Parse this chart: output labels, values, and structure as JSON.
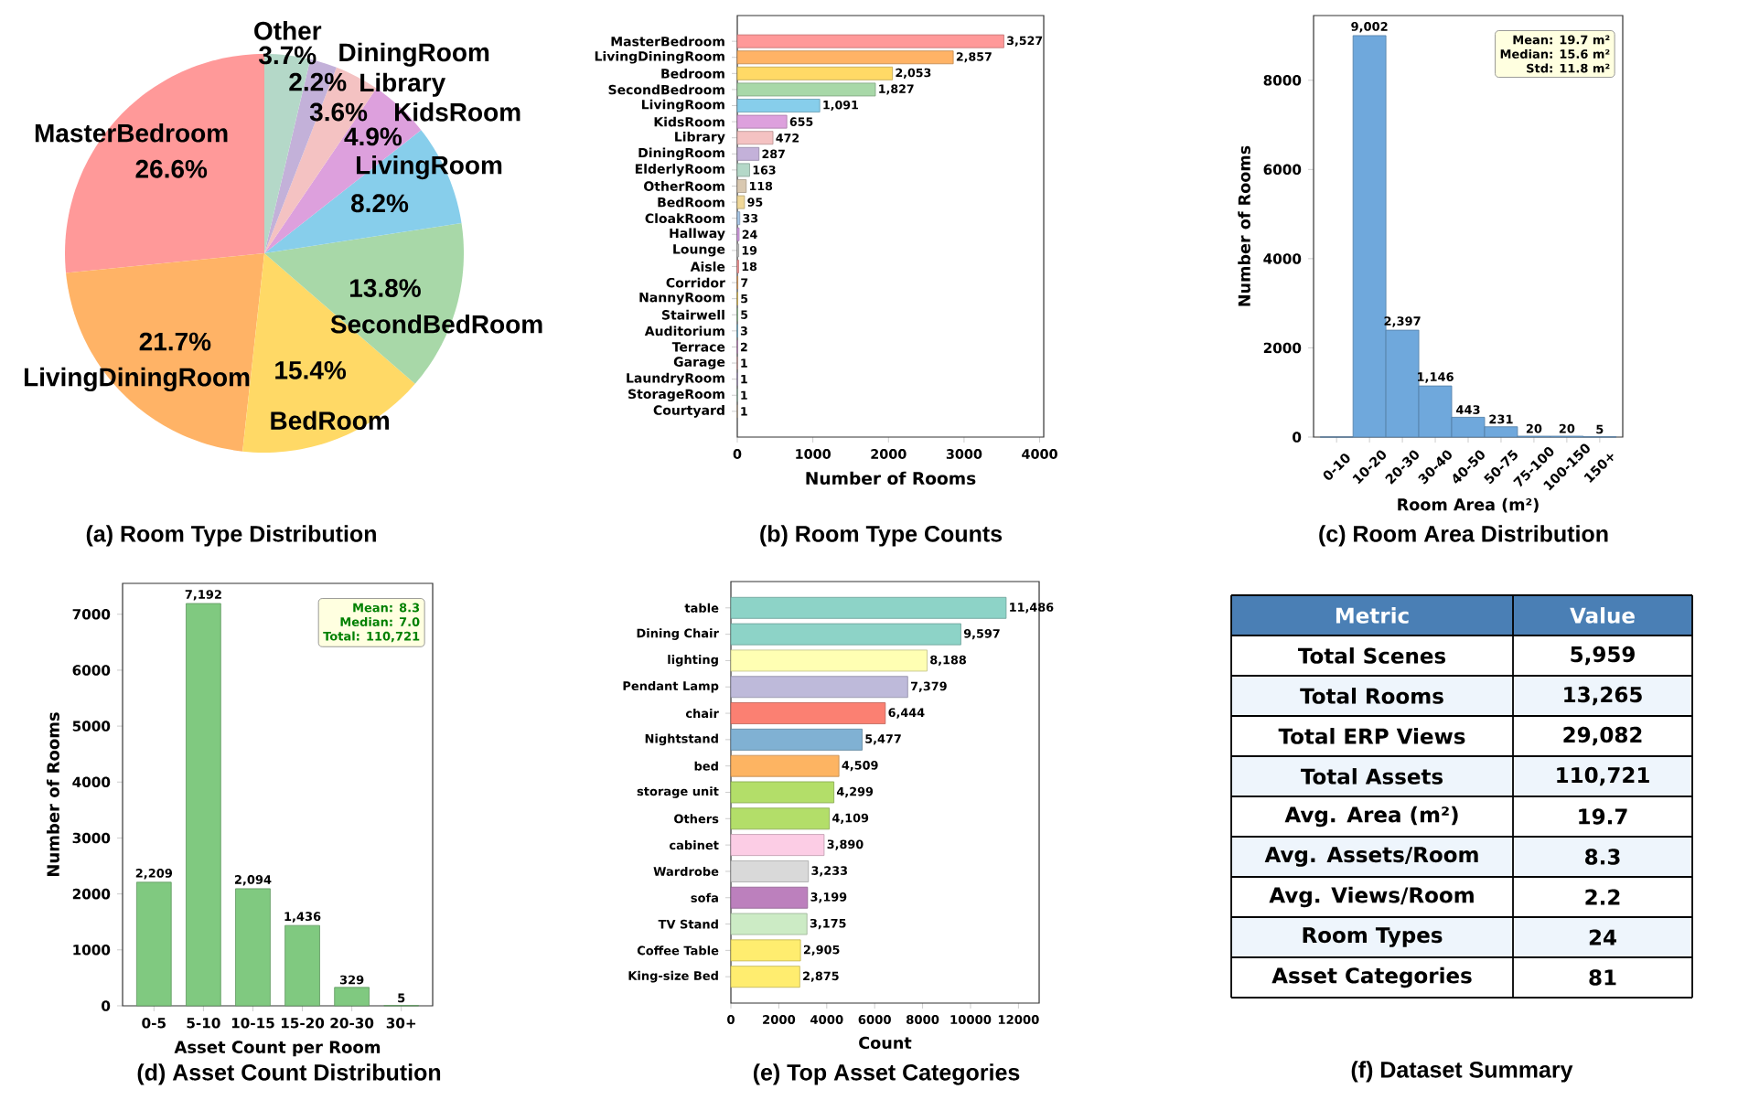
{
  "chart_data": [
    {
      "type": "pie",
      "title": "(a) Room Type Distribution",
      "categories": [
        "MasterBedroom",
        "LivingDiningRoom",
        "BedRoom",
        "SecondBedRoom",
        "LivingRoom",
        "KidsRoom",
        "Library",
        "DiningRoom",
        "Other"
      ],
      "values": [
        26.6,
        21.7,
        15.4,
        13.8,
        8.2,
        4.9,
        3.6,
        2.2,
        3.7
      ],
      "value_labels": [
        "26.6%",
        "21.7%",
        "15.4%",
        "13.8%",
        "8.2%",
        "4.9%",
        "3.6%",
        "2.2%",
        "3.7%"
      ],
      "colors": [
        "#ff9999",
        "#ffb366",
        "#ffd966",
        "#a8d8a8",
        "#87ceeb",
        "#dda0dd",
        "#f4c2c2",
        "#c3b1d9",
        "#b4d8c8"
      ]
    },
    {
      "type": "bar",
      "orientation": "horizontal",
      "title": "(b) Room Type Counts",
      "xlabel": "Number of Rooms",
      "categories": [
        "MasterBedroom",
        "LivingDiningRoom",
        "Bedroom",
        "SecondBedroom",
        "LivingRoom",
        "KidsRoom",
        "Library",
        "DiningRoom",
        "ElderlyRoom",
        "OtherRoom",
        "BedRoom",
        "CloakRoom",
        "Hallway",
        "Lounge",
        "Aisle",
        "Corridor",
        "NannyRoom",
        "Stairwell",
        "Auditorium",
        "Terrace",
        "Garage",
        "LaundryRoom",
        "StorageRoom",
        "Courtyard"
      ],
      "values": [
        3527,
        2857,
        2053,
        1827,
        1091,
        655,
        472,
        287,
        163,
        118,
        95,
        33,
        24,
        19,
        18,
        7,
        5,
        5,
        3,
        2,
        1,
        1,
        1,
        1
      ],
      "value_labels": [
        "3,527",
        "2,857",
        "2,053",
        "1,827",
        "1,091",
        "655",
        "472",
        "287",
        "163",
        "118",
        "95",
        "33",
        "24",
        "19",
        "18",
        "7",
        "5",
        "5",
        "3",
        "2",
        "1",
        "1",
        "1",
        "1"
      ],
      "colors": [
        "#ff9999",
        "#ffb366",
        "#ffd966",
        "#a8d8a8",
        "#87ceeb",
        "#dda0dd",
        "#f4c2c2",
        "#c3b1d9",
        "#b4d8c8",
        "#d9c8b0",
        "#f0d898",
        "#a8c8e8",
        "#d8a0e8",
        "#c8c8c8",
        "#ff9999",
        "#ffb366",
        "#ffd966",
        "#a8d8a8",
        "#87ceeb",
        "#dda0dd",
        "#f4c2c2",
        "#c3b1d9",
        "#b4d8c8",
        "#d9c8b0"
      ],
      "xlim": [
        0,
        4054
      ],
      "xticks": [
        0,
        1000,
        2000,
        3000,
        4000
      ]
    },
    {
      "type": "bar",
      "title": "(c) Room Area Distribution",
      "xlabel": "Room Area (m²)",
      "ylabel": "Number of Rooms",
      "categories": [
        "0-10",
        "10-20",
        "20-30",
        "30-40",
        "40-50",
        "50-75",
        "75-100",
        "100-150",
        "150+"
      ],
      "values": [
        0,
        9002,
        2397,
        1146,
        443,
        231,
        20,
        20,
        5
      ],
      "value_labels": [
        null,
        "9,002",
        "2,397",
        "1,146",
        "443",
        "231",
        "20",
        "20",
        "5"
      ],
      "color": "#6fa8dc",
      "ylim": [
        0,
        9452
      ],
      "yticks": [
        0,
        2000,
        4000,
        6000,
        8000
      ],
      "annotations": [
        "Mean: 19.7 m²",
        "Median: 15.6 m²",
        "Std: 11.8 m²"
      ]
    },
    {
      "type": "bar",
      "title": "(d) Asset Count Distribution",
      "xlabel": "Asset Count per Room",
      "ylabel": "Number of Rooms",
      "categories": [
        "0-5",
        "5-10",
        "10-15",
        "15-20",
        "20-30",
        "30+"
      ],
      "values": [
        2209,
        7192,
        2094,
        1436,
        329,
        5
      ],
      "value_labels": [
        "2,209",
        "7,192",
        "2,094",
        "1,436",
        "329",
        "5"
      ],
      "color": "#80c980",
      "ylim": [
        0,
        7552
      ],
      "yticks": [
        0,
        1000,
        2000,
        3000,
        4000,
        5000,
        6000,
        7000
      ],
      "annotations": [
        "Mean: 8.3",
        "Median: 7.0",
        "Total: 110,721"
      ]
    },
    {
      "type": "bar",
      "orientation": "horizontal",
      "title": "(e) Top Asset Categories",
      "xlabel": "Count",
      "categories": [
        "table",
        "Dining Chair",
        "lighting",
        "Pendant Lamp",
        "chair",
        "Nightstand",
        "bed",
        "storage unit",
        "Others",
        "cabinet",
        "Wardrobe",
        "sofa",
        "TV Stand",
        "Coffee Table",
        "King-size Bed"
      ],
      "values": [
        11486,
        9597,
        8188,
        7379,
        6444,
        5477,
        4509,
        4299,
        4109,
        3890,
        3233,
        3199,
        3175,
        2905,
        2875
      ],
      "value_labels": [
        "11,486",
        "9,597",
        "8,188",
        "7,379",
        "6,444",
        "5,477",
        "4,509",
        "4,299",
        "4,109",
        "3,890",
        "3,233",
        "3,199",
        "3,175",
        "2,905",
        "2,875"
      ],
      "colors": [
        "#8dd3c7",
        "#8dd3c7",
        "#ffffb3",
        "#bebada",
        "#fb8072",
        "#80b1d3",
        "#fdb462",
        "#b3de69",
        "#b3de69",
        "#fccde5",
        "#d9d9d9",
        "#bc80bd",
        "#ccebc5",
        "#ffed6f",
        "#ffed6f"
      ],
      "xlim": [
        0,
        12864
      ],
      "xticks": [
        0,
        2000,
        4000,
        6000,
        8000,
        10000,
        12000
      ]
    },
    {
      "type": "other",
      "title": "(f) Dataset Summary",
      "annotations": [
        "Metric",
        "Value"
      ],
      "categories": [
        "Total Scenes",
        "Total Rooms",
        "Total ERP Views",
        "Total Assets",
        "Avg. Area (m²)",
        "Avg. Assets/Room",
        "Avg. Views/Room",
        "Room Types",
        "Asset Categories"
      ],
      "value_labels": [
        "5,959",
        "13,265",
        "29,082",
        "110,721",
        "19.7",
        "8.3",
        "2.2",
        "24",
        "81"
      ]
    }
  ]
}
